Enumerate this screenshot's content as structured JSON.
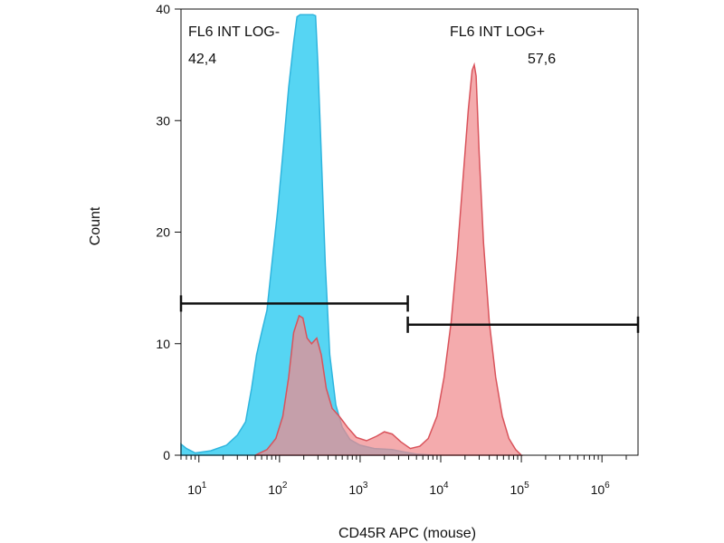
{
  "chart_data": {
    "type": "area",
    "xlabel": "CD45R APC (mouse)",
    "ylabel": "Count",
    "x_scale": "log",
    "xlim": [
      6,
      2800000
    ],
    "ylim": [
      0,
      40
    ],
    "y_ticks": [
      0,
      10,
      20,
      30,
      40
    ],
    "x_ticks": [
      {
        "value": 10,
        "base": "10",
        "exp": "1"
      },
      {
        "value": 100,
        "base": "10",
        "exp": "2"
      },
      {
        "value": 1000,
        "base": "10",
        "exp": "3"
      },
      {
        "value": 10000,
        "base": "10",
        "exp": "4"
      },
      {
        "value": 100000,
        "base": "10",
        "exp": "5"
      },
      {
        "value": 1000000,
        "base": "10",
        "exp": "6"
      }
    ],
    "grid": false,
    "series": [
      {
        "fill": "#4dd3f2",
        "stroke": "#2fb5de",
        "points": [
          [
            6,
            1.0
          ],
          [
            7,
            0.6
          ],
          [
            9,
            0.2
          ],
          [
            14,
            0.4
          ],
          [
            22,
            0.9
          ],
          [
            30,
            1.8
          ],
          [
            38,
            3.0
          ],
          [
            45,
            6.0
          ],
          [
            52,
            9.0
          ],
          [
            60,
            11.0
          ],
          [
            70,
            13.0
          ],
          [
            80,
            17.0
          ],
          [
            95,
            22.0
          ],
          [
            110,
            27.0
          ],
          [
            130,
            33.0
          ],
          [
            150,
            37.0
          ],
          [
            165,
            39.3
          ],
          [
            180,
            39.5
          ],
          [
            200,
            39.5
          ],
          [
            230,
            39.5
          ],
          [
            260,
            39.5
          ],
          [
            280,
            39.4
          ],
          [
            300,
            35.0
          ],
          [
            330,
            27.0
          ],
          [
            370,
            17.0
          ],
          [
            420,
            9.0
          ],
          [
            500,
            4.5
          ],
          [
            600,
            2.5
          ],
          [
            750,
            1.4
          ],
          [
            1000,
            0.9
          ],
          [
            1500,
            0.6
          ],
          [
            2500,
            0.5
          ],
          [
            3500,
            0.3
          ],
          [
            5000,
            0.1
          ],
          [
            8000,
            0.0
          ]
        ]
      },
      {
        "fill": "#f08a8e",
        "stroke": "#d9535b",
        "points": [
          [
            50,
            0.0
          ],
          [
            70,
            0.5
          ],
          [
            90,
            1.5
          ],
          [
            110,
            3.5
          ],
          [
            130,
            7.0
          ],
          [
            150,
            11.0
          ],
          [
            175,
            12.5
          ],
          [
            195,
            12.3
          ],
          [
            220,
            10.5
          ],
          [
            250,
            10.0
          ],
          [
            290,
            10.5
          ],
          [
            330,
            9.0
          ],
          [
            380,
            6.0
          ],
          [
            450,
            4.2
          ],
          [
            550,
            3.5
          ],
          [
            700,
            2.5
          ],
          [
            900,
            1.6
          ],
          [
            1200,
            1.3
          ],
          [
            1600,
            1.7
          ],
          [
            2000,
            2.1
          ],
          [
            2500,
            1.9
          ],
          [
            3200,
            1.2
          ],
          [
            4200,
            0.6
          ],
          [
            5500,
            0.8
          ],
          [
            7000,
            1.5
          ],
          [
            9000,
            3.5
          ],
          [
            11000,
            7.0
          ],
          [
            13500,
            12.0
          ],
          [
            16000,
            18.0
          ],
          [
            19000,
            25.0
          ],
          [
            22000,
            31.0
          ],
          [
            24500,
            34.5
          ],
          [
            26000,
            35.0
          ],
          [
            27500,
            34.0
          ],
          [
            30000,
            27.0
          ],
          [
            34000,
            19.0
          ],
          [
            40000,
            12.0
          ],
          [
            48000,
            7.0
          ],
          [
            58000,
            3.5
          ],
          [
            70000,
            1.5
          ],
          [
            85000,
            0.5
          ],
          [
            100000,
            0.0
          ]
        ]
      }
    ],
    "gates": [
      {
        "name": "FL6 INT LOG-",
        "value": "42,4",
        "x_start": 6,
        "x_end": 3900,
        "y": 13.6
      },
      {
        "name": "FL6 INT LOG+",
        "value": "57,6",
        "x_start": 3900,
        "x_end": 2800000,
        "y": 11.7
      }
    ]
  }
}
